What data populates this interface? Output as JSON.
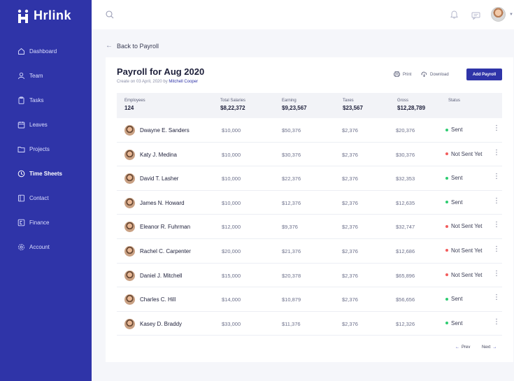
{
  "brand": {
    "name": "Hrlink"
  },
  "sidebar": {
    "items": [
      {
        "label": "Dashboard",
        "icon": "home-icon",
        "active": false
      },
      {
        "label": "Team",
        "icon": "user-icon",
        "active": false
      },
      {
        "label": "Tasks",
        "icon": "clipboard-icon",
        "active": false
      },
      {
        "label": "Leaves",
        "icon": "calendar-icon",
        "active": false
      },
      {
        "label": "Projects",
        "icon": "folder-icon",
        "active": false
      },
      {
        "label": "Time Sheets",
        "icon": "clock-icon",
        "active": true
      },
      {
        "label": "Contact",
        "icon": "book-icon",
        "active": false
      },
      {
        "label": "Finance",
        "icon": "finance-icon",
        "active": false
      },
      {
        "label": "Account",
        "icon": "gear-icon",
        "active": false
      }
    ]
  },
  "back": {
    "label": "Back to Payroll"
  },
  "header": {
    "title": "Payroll for Aug 2020",
    "created_prefix": "Create on 03 April, 2020 by",
    "created_by": "Mitchell Cooper",
    "print_label": "Print",
    "download_label": "Download",
    "add_label": "Add Payroll"
  },
  "summary": {
    "employees": {
      "label": "Employees",
      "value": "124"
    },
    "salaries": {
      "label": "Total Salaries",
      "value": "$8,22,372"
    },
    "earning": {
      "label": "Earning",
      "value": "$9,23,567"
    },
    "taxes": {
      "label": "Taxes",
      "value": "$23,567"
    },
    "gross": {
      "label": "Gross",
      "value": "$12,28,789"
    },
    "status": {
      "label": "Status"
    }
  },
  "rows": [
    {
      "name": "Dwayne E. Sanders",
      "salary": "$10,000",
      "earning": "$50,376",
      "taxes": "$2,376",
      "gross": "$20,376",
      "status": "Sent"
    },
    {
      "name": "Katy J. Medina",
      "salary": "$10,000",
      "earning": "$30,376",
      "taxes": "$2,376",
      "gross": "$30,376",
      "status": "Not Sent Yet"
    },
    {
      "name": "David T. Lasher",
      "salary": "$10,000",
      "earning": "$22,376",
      "taxes": "$2,376",
      "gross": "$32,353",
      "status": "Sent"
    },
    {
      "name": "James N. Howard",
      "salary": "$10,000",
      "earning": "$12,376",
      "taxes": "$2,376",
      "gross": "$12,635",
      "status": "Sent"
    },
    {
      "name": "Eleanor R. Fuhrman",
      "salary": "$12,000",
      "earning": "$9,376",
      "taxes": "$2,376",
      "gross": "$32,747",
      "status": "Not Sent Yet"
    },
    {
      "name": "Rachel C. Carpenter",
      "salary": "$20,000",
      "earning": "$21,376",
      "taxes": "$2,376",
      "gross": "$12,686",
      "status": "Not Sent Yet"
    },
    {
      "name": "Daniel J. Mitchell",
      "salary": "$15,000",
      "earning": "$20,378",
      "taxes": "$2,376",
      "gross": "$65,896",
      "status": "Not Sent Yet"
    },
    {
      "name": "Charles C. Hill",
      "salary": "$14,000",
      "earning": "$10,879",
      "taxes": "$2,376",
      "gross": "$56,656",
      "status": "Sent"
    },
    {
      "name": "Kasey D. Braddy",
      "salary": "$33,000",
      "earning": "$11,376",
      "taxes": "$2,376",
      "gross": "$12,326",
      "status": "Sent"
    }
  ],
  "status_colors": {
    "Sent": "#2ecc71",
    "Not Sent Yet": "#f25c5c"
  },
  "pager": {
    "prev_label": "Prev",
    "next_label": "Next"
  },
  "colors": {
    "brand": "#2f34a8",
    "background": "#f5f6fa"
  }
}
